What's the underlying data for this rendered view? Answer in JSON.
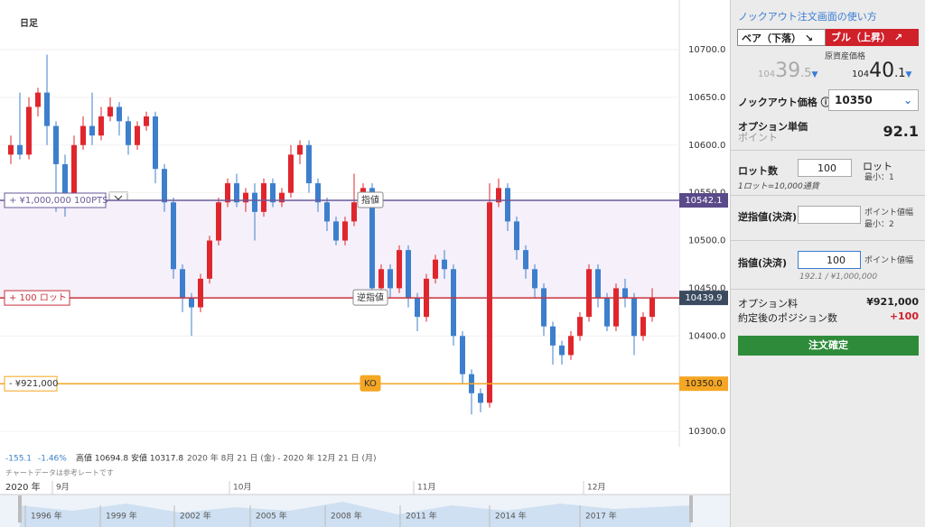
{
  "chart_data": {
    "type": "candlestick",
    "title": "日足",
    "ylim": [
      10284,
      10752
    ],
    "yticks": [
      {
        "value": 10300,
        "label": "10300.0"
      },
      {
        "value": 10350,
        "label": "10350.0"
      },
      {
        "value": 10400,
        "label": "10400.0"
      },
      {
        "value": 10450,
        "label": "10450.0"
      },
      {
        "value": 10500,
        "label": "10500.0"
      },
      {
        "value": 10550,
        "label": "10550.0"
      },
      {
        "value": 10600,
        "label": "10600.0"
      },
      {
        "value": 10650,
        "label": "10650.0"
      },
      {
        "value": 10700,
        "label": "10700.0"
      }
    ],
    "up_color": "#e0262d",
    "down_color": "#3d7fcc",
    "candles": [
      [
        10590,
        10610,
        10580,
        10600
      ],
      [
        10600,
        10655,
        10585,
        10590
      ],
      [
        10590,
        10650,
        10585,
        10640
      ],
      [
        10640,
        10660,
        10630,
        10655
      ],
      [
        10655,
        10694.8,
        10600,
        10620
      ],
      [
        10620,
        10625,
        10530,
        10580
      ],
      [
        10580,
        10590,
        10525,
        10540
      ],
      [
        10540,
        10610,
        10535,
        10600
      ],
      [
        10600,
        10630,
        10595,
        10620
      ],
      [
        10620,
        10655,
        10600,
        10610
      ],
      [
        10610,
        10640,
        10605,
        10630
      ],
      [
        10630,
        10650,
        10625,
        10640
      ],
      [
        10640,
        10645,
        10610,
        10625
      ],
      [
        10625,
        10630,
        10590,
        10600
      ],
      [
        10600,
        10625,
        10595,
        10620
      ],
      [
        10620,
        10635,
        10615,
        10630
      ],
      [
        10630,
        10635,
        10560,
        10575
      ],
      [
        10575,
        10580,
        10530,
        10540
      ],
      [
        10540,
        10545,
        10460,
        10470
      ],
      [
        10470,
        10475,
        10425,
        10440
      ],
      [
        10440,
        10445,
        10400,
        10430
      ],
      [
        10430,
        10465,
        10425,
        10460
      ],
      [
        10460,
        10505,
        10455,
        10500
      ],
      [
        10500,
        10545,
        10495,
        10540
      ],
      [
        10540,
        10565,
        10535,
        10560
      ],
      [
        10560,
        10570,
        10535,
        10540
      ],
      [
        10540,
        10555,
        10530,
        10550
      ],
      [
        10550,
        10560,
        10500,
        10530
      ],
      [
        10530,
        10565,
        10525,
        10560
      ],
      [
        10560,
        10565,
        10535,
        10540
      ],
      [
        10540,
        10555,
        10535,
        10550
      ],
      [
        10550,
        10600,
        10545,
        10590
      ],
      [
        10590,
        10605,
        10580,
        10600
      ],
      [
        10600,
        10605,
        10550,
        10560
      ],
      [
        10560,
        10565,
        10530,
        10540
      ],
      [
        10540,
        10545,
        10510,
        10520
      ],
      [
        10520,
        10525,
        10495,
        10500
      ],
      [
        10500,
        10525,
        10495,
        10520
      ],
      [
        10520,
        10570,
        10515,
        10540
      ],
      [
        10540,
        10560,
        10535,
        10555
      ],
      [
        10555,
        10560,
        10440,
        10450
      ],
      [
        10450,
        10475,
        10445,
        10470
      ],
      [
        10470,
        10475,
        10440,
        10450
      ],
      [
        10450,
        10495,
        10445,
        10490
      ],
      [
        10490,
        10495,
        10430,
        10440
      ],
      [
        10440,
        10445,
        10405,
        10420
      ],
      [
        10420,
        10465,
        10415,
        10460
      ],
      [
        10460,
        10485,
        10455,
        10480
      ],
      [
        10480,
        10490,
        10460,
        10470
      ],
      [
        10470,
        10475,
        10390,
        10400
      ],
      [
        10400,
        10405,
        10350,
        10360
      ],
      [
        10360,
        10365,
        10317.8,
        10340
      ],
      [
        10340,
        10345,
        10320,
        10330
      ],
      [
        10330,
        10560,
        10325,
        10540
      ],
      [
        10540,
        10565,
        10535,
        10555
      ],
      [
        10555,
        10560,
        10510,
        10520
      ],
      [
        10520,
        10525,
        10480,
        10490
      ],
      [
        10490,
        10495,
        10460,
        10470
      ],
      [
        10470,
        10475,
        10440,
        10450
      ],
      [
        10450,
        10455,
        10400,
        10410
      ],
      [
        10410,
        10415,
        10370,
        10390
      ],
      [
        10390,
        10395,
        10370,
        10380
      ],
      [
        10380,
        10405,
        10375,
        10400
      ],
      [
        10400,
        10425,
        10395,
        10420
      ],
      [
        10420,
        10475,
        10415,
        10470
      ],
      [
        10470,
        10475,
        10430,
        10440
      ],
      [
        10440,
        10445,
        10405,
        10410
      ],
      [
        10410,
        10455,
        10405,
        10450
      ],
      [
        10450,
        10460,
        10430,
        10440
      ],
      [
        10440,
        10445,
        10380,
        10400
      ],
      [
        10400,
        10425,
        10395,
        10420
      ],
      [
        10420,
        10450,
        10415,
        10440
      ]
    ],
    "levels": [
      {
        "value": 10542.1,
        "label": "10542.1",
        "color": "#6b5b9a",
        "tag": "+ ¥1,000,000 100PTS",
        "marker": "指値"
      },
      {
        "value": 10439.9,
        "label": "10439.9",
        "color": "#c8323c",
        "tag": "+ 100 ロット",
        "marker": "逆指値"
      },
      {
        "value": 10350,
        "label": "10350.0",
        "color": "#f5a623",
        "tag": "- ¥921,000",
        "marker": "KO"
      }
    ],
    "stats": {
      "change": "-155.1",
      "change_pct": "-1.46%",
      "high": "高値 10694.8",
      "low": "安値 10317.8",
      "range": "2020 年 8月 21 日 (金) - 2020 年 12月 21 日 (月)",
      "note": "チャートデータは参考レートです"
    },
    "timeline": {
      "year": "2020 年",
      "months": [
        "9月",
        "10月",
        "11月",
        "12月"
      ]
    },
    "navigator": {
      "years": [
        "1996 年",
        "1999 年",
        "2002 年",
        "2005 年",
        "2008 年",
        "2011 年",
        "2014 年",
        "2017 年"
      ]
    }
  },
  "panel": {
    "help": "ノックアウト注文画面の使い方",
    "bear": "ベア（下落）",
    "bull": "ブル（上昇）",
    "price_label": "原資産価格",
    "bid": {
      "big": "104",
      "main": "39",
      "small": ".5"
    },
    "ask": {
      "big": "104",
      "main": "40",
      "small": ".1"
    },
    "ko_label": "ノックアウト価格",
    "ko_value": "10350",
    "unit_label": "オプション単価",
    "unit_sub": "ポイント",
    "unit_value": "92.1",
    "lot_label": "ロット数",
    "lot_value": "100",
    "lot_unit": "ロット",
    "lot_min": "最小：1",
    "lot_note": "1ロット=10,000通貨",
    "stop_label": "逆指値(決済)",
    "stop_unit": "ポイント値幅",
    "stop_min": "最小：2",
    "limit_label": "指値(決済)",
    "limit_value": "100",
    "limit_unit": "ポイント値幅",
    "limit_note": "192.1 / ¥1,000,000",
    "fee_label": "オプション料",
    "fee_value": "¥921,000",
    "pos_label": "約定後のポジション数",
    "pos_value": "+100",
    "submit": "注文確定"
  }
}
